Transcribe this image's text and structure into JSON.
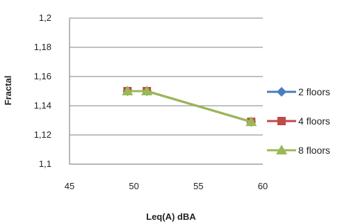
{
  "chart_data": {
    "type": "line",
    "title": "",
    "xlabel": "Leq(A) dBA",
    "ylabel": "Fractal",
    "xlim": [
      45,
      60
    ],
    "ylim": [
      1.1,
      1.2
    ],
    "x_ticks": [
      45,
      50,
      55,
      60
    ],
    "x_tick_labels": [
      "45",
      "50",
      "55",
      "60"
    ],
    "y_ticks": [
      1.1,
      1.12,
      1.14,
      1.16,
      1.18,
      1.2
    ],
    "y_tick_labels": [
      "1,1",
      "1,12",
      "1,14",
      "1,16",
      "1,18",
      "1,2"
    ],
    "grid": "horizontal",
    "legend_position": "right",
    "series": [
      {
        "name": "2 floors",
        "color": "#4a7ebb",
        "marker": "diamond",
        "points": [
          [
            49.5,
            1.15
          ],
          [
            51,
            1.15
          ],
          [
            59.1,
            1.129
          ]
        ]
      },
      {
        "name": "4 floors",
        "color": "#be4b48",
        "marker": "square",
        "points": [
          [
            49.5,
            1.15
          ],
          [
            51,
            1.15
          ],
          [
            59.1,
            1.129
          ]
        ]
      },
      {
        "name": "8 floors",
        "color": "#98b954",
        "marker": "triangle",
        "points": [
          [
            49.5,
            1.15
          ],
          [
            51,
            1.15
          ],
          [
            59.1,
            1.129
          ]
        ]
      }
    ]
  }
}
